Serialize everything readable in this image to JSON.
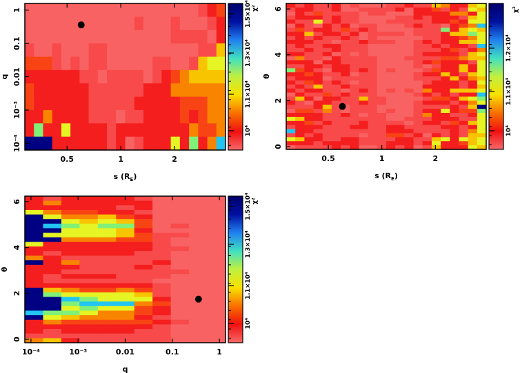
{
  "colors": {
    "levels": [
      "#f86262",
      "#f84a4a",
      "#f41e1e",
      "#f84414",
      "#f88400",
      "#f8c400",
      "#e6f424",
      "#80f078",
      "#22c4f2",
      "#000082"
    ],
    "colorbar_stops": [
      "#f86a6a",
      "#f01010",
      "#f87000",
      "#f8e000",
      "#c0f040",
      "#40e0c0",
      "#2080f0",
      "#0010a0",
      "#00006a"
    ]
  },
  "chart_data": [
    {
      "type": "heatmap",
      "xlabel": "s (R",
      "xlabel_sub": "E",
      "xlabel_close": ")",
      "ylabel": "q",
      "x_scale": "log",
      "xlim": [
        0.29,
        3.86
      ],
      "y_scale": "log",
      "ylim_log10": [
        -4.2,
        0.2
      ],
      "xticks": [
        {
          "v": 0.5,
          "label": "0.5"
        },
        {
          "v": 1,
          "label": "1"
        },
        {
          "v": 2,
          "label": "2"
        }
      ],
      "yticks": [
        {
          "v": 1,
          "label": "1"
        },
        {
          "v": 0.1,
          "label": "0.1"
        },
        {
          "v": 0.01,
          "label": "0.01"
        },
        {
          "v": 0.001,
          "label": "10⁻³"
        },
        {
          "v": 0.0001,
          "label": "10⁻⁴"
        }
      ],
      "colorbar": {
        "title": "χ²",
        "ticks": [
          "10⁴",
          "1.1×10⁴",
          "1.3×10⁴",
          "1.5×10⁴"
        ]
      },
      "best_fit": {
        "x": 0.6,
        "y": 0.36
      },
      "levels_rows_top_to_bottom": [
        "0000000000000000000123",
        "0000000000001000100012",
        "0000000000000000111102",
        "1001000110000000000115",
        "3331010110000011001566",
        "2222221101111012345555",
        "3222222111111222444444",
        "3222222111112222233344",
        "2242222111011222232344",
        "2722622221222222224334",
        "9992222221201222627248"
      ]
    },
    {
      "type": "heatmap",
      "xlabel": "s (R",
      "xlabel_sub": "E",
      "xlabel_close": ")",
      "ylabel": "θ",
      "x_scale": "log",
      "xlim": [
        0.29,
        3.86
      ],
      "y_scale": "linear",
      "ylim": [
        -0.12,
        6.24
      ],
      "xticks": [
        {
          "v": 0.5,
          "label": "0.5"
        },
        {
          "v": 1,
          "label": "1"
        },
        {
          "v": 2,
          "label": "2"
        }
      ],
      "yticks": [
        {
          "v": 0,
          "label": "0"
        },
        {
          "v": 2,
          "label": "2"
        },
        {
          "v": 4,
          "label": "4"
        },
        {
          "v": 6,
          "label": "6"
        }
      ],
      "colorbar": {
        "title": "χ²",
        "ticks": [
          "10⁴",
          "1.1×10⁴",
          "1.2×10⁴"
        ]
      },
      "best_fit": {
        "x": 0.6,
        "y": 1.75
      },
      "levels_rows_top_to_bottom": [
        "2121120100011211542256",
        "1221120011112022312165",
        "0213111101100022224426",
        "1222121100001121222156",
        "2116121100011111223266",
        "0210212011000121102348",
        "1312213121000011172565",
        "2251221201111011125576",
        "1212112101000001122346",
        "2221101121110012122556",
        "1211221110000011212218",
        "1121121110000011123124",
        "2211201010000012222156",
        "0411021111000111133455",
        "2220221111000012322216",
        "1122122111000010122526",
        "7321022121010001322526",
        "2232112011000012252156",
        "1222011111000011125245",
        "2132121011000001222126",
        "1215112111000002222125",
        "2122110121010104225556",
        "0211312111000012121228",
        "1520221151100001332567",
        "2102211121100012221246",
        "1112510111000011112159",
        "0331410111010012262337",
        "2222112101100014221126",
        "6522111111100111222116",
        "2231211121111012213256",
        "1222111221122111122126",
        "8221111111122211112146",
        "1212111101133120212155",
        "6522112211112211562656",
        "2221222211122212622356",
        "0111121200121201522265"
      ]
    },
    {
      "type": "heatmap",
      "xlabel": "q",
      "ylabel": "θ",
      "x_scale": "log",
      "xlim_log10": [
        -4.13,
        0.13
      ],
      "y_scale": "linear",
      "ylim": [
        -0.15,
        6.24
      ],
      "xticks": [
        {
          "v": 0.0001,
          "label": "10⁻⁴"
        },
        {
          "v": 0.001,
          "label": "10⁻³"
        },
        {
          "v": 0.01,
          "label": "0.01"
        },
        {
          "v": 0.1,
          "label": "0.1"
        },
        {
          "v": 1,
          "label": "1"
        }
      ],
      "yticks": [
        {
          "v": 0,
          "label": "0"
        },
        {
          "v": 2,
          "label": "2"
        },
        {
          "v": 4,
          "label": "4"
        },
        {
          "v": 6,
          "label": "6"
        }
      ],
      "colorbar": {
        "title": "χ²",
        "ticks": [
          "10⁴",
          "1.1×10⁴",
          "1.3×10⁴",
          "1.5×10⁴"
        ]
      },
      "best_fit": {
        "x": 0.36,
        "y": 1.75
      },
      "levels_rows_top_to_bottom": [
        "21222210000",
        "24222220000",
        "22222120000",
        "64332210000",
        "96445320000",
        "99656530000",
        "98767730100",
        "99666520000",
        "96666531100",
        "99444331000",
        "62222221000",
        "22222221100",
        "21222211000",
        "42111111000",
        "92411112000",
        "22211121000",
        "22111111100",
        "21222111000",
        "21111110000",
        "22222221000",
        "95433431000",
        "97666651000",
        "99876662000",
        "99788843000",
        "99676632000",
        "87764432000",
        "96544421000",
        "24333332100",
        "22222221000",
        "21222211000",
        "11111111000",
        "45211111000"
      ]
    }
  ]
}
